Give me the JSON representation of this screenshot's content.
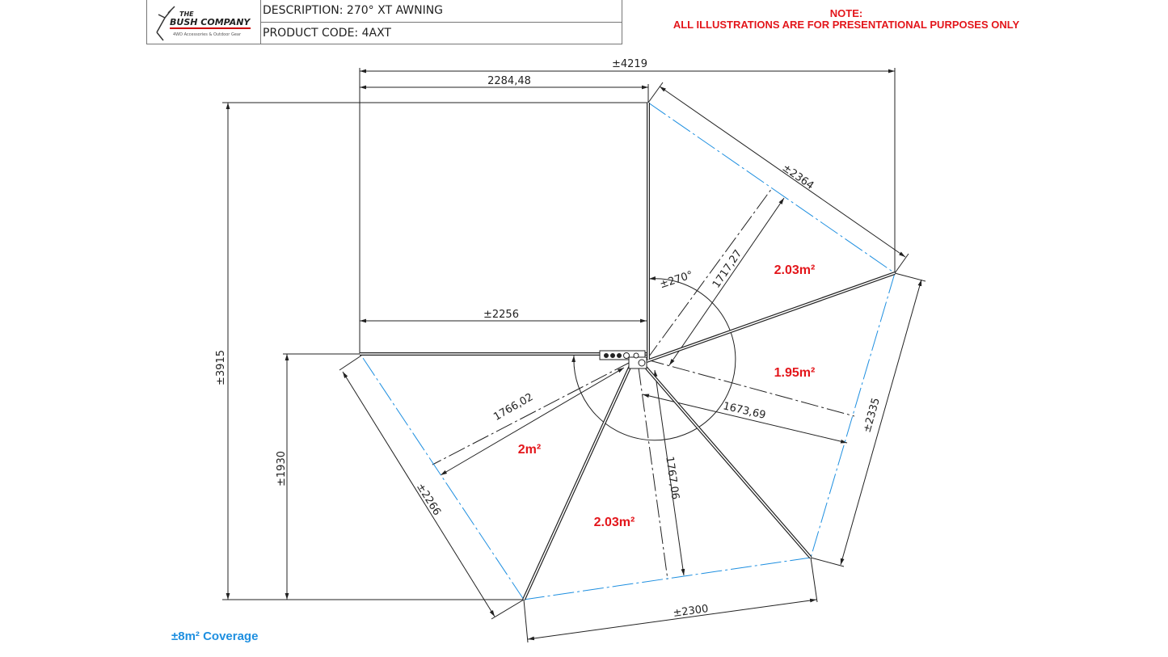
{
  "header": {
    "logo_text": [
      "THE",
      "BUSH COMPANY",
      "4WD Accessories & Outdoor Gear"
    ],
    "description": "DESCRIPTION: 270° XT AWNING",
    "product_code": "PRODUCT CODE: 4AXT"
  },
  "note": {
    "title": "NOTE:",
    "text": "ALL ILLUSTRATIONS ARE FOR PRESENTATIONAL PURPOSES ONLY"
  },
  "dimensions": {
    "overall_width": "±4219",
    "rect_width": "2284,48",
    "inner_width": "±2256",
    "overall_height": "±3915",
    "lower_height": "±1930",
    "edge_1": "±2364",
    "edge_2": "±2335",
    "edge_3": "±2300",
    "edge_4": "±2266",
    "radial_1": "1717,27",
    "radial_2": "1673,69",
    "radial_3": "1767,06",
    "radial_4": "1766,02",
    "angle": "±270°"
  },
  "areas": {
    "panel_1": "2.03m²",
    "panel_2": "1.95m²",
    "panel_3": "2.03m²",
    "panel_4": "2m²"
  },
  "coverage": "±8m² Coverage",
  "colors": {
    "note": "#e3161b",
    "coverage": "#1e8fe0",
    "edge": "#1e8fe0",
    "line": "#222222"
  }
}
